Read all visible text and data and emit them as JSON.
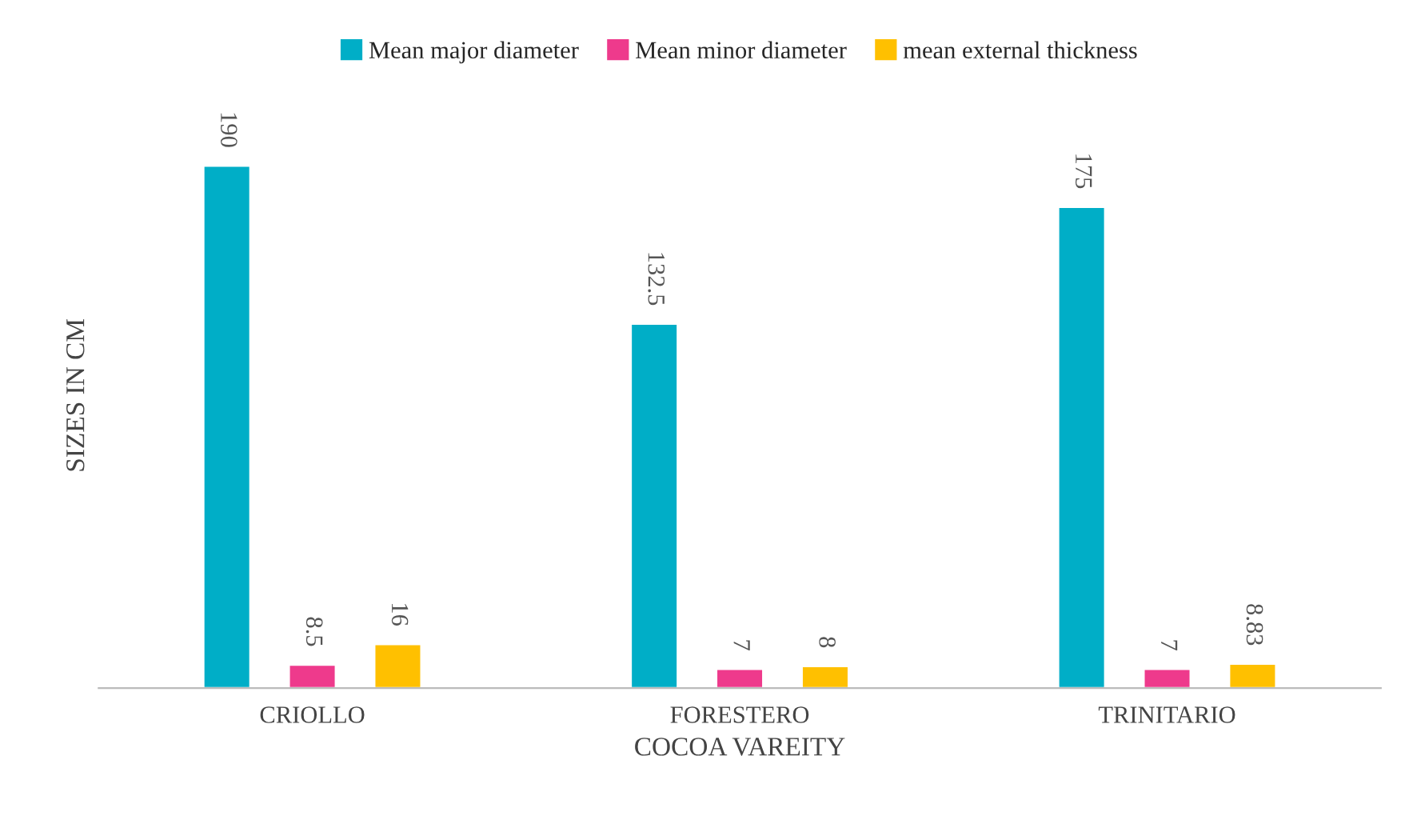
{
  "chart_data": {
    "type": "bar",
    "xlabel": "COCOA VAREITY",
    "ylabel": "SIZES IN CM",
    "categories": [
      "CRIOLLO",
      "FORESTERO",
      "TRINITARIO"
    ],
    "series": [
      {
        "name": "Mean major diameter",
        "color": "#00aec7",
        "values": [
          190,
          132.5,
          175
        ]
      },
      {
        "name": "Mean minor diameter",
        "color": "#ee3a8c",
        "values": [
          8.5,
          7,
          7
        ]
      },
      {
        "name": "mean external thickness",
        "color": "#ffc000",
        "values": [
          16,
          8,
          8.83
        ]
      }
    ],
    "data_labels": true,
    "legend": "top",
    "grid": false,
    "tick_labels": "x"
  }
}
